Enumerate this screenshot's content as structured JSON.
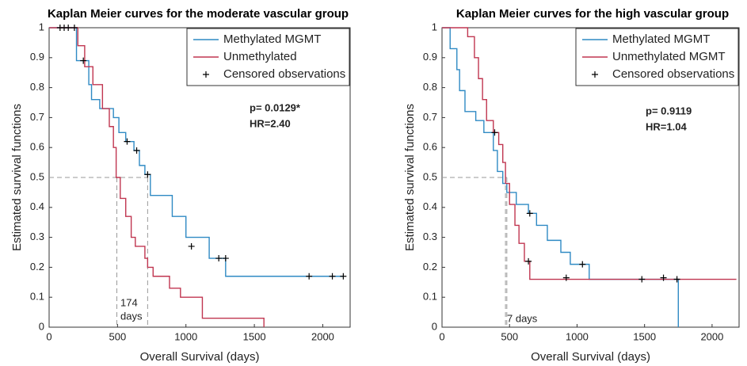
{
  "chart_data": [
    {
      "type": "step",
      "title": "Kaplan Meier curves for the moderate vascular group",
      "x_label": "Overall Survival (days)",
      "y_label": "Estimated survival functions",
      "xlim": [
        0,
        2200
      ],
      "ylim": [
        0,
        1
      ],
      "xticks": [
        0,
        500,
        1000,
        1500,
        2000
      ],
      "yticks": [
        0,
        0.1,
        0.2,
        0.3,
        0.4,
        0.5,
        0.6,
        0.7,
        0.8,
        0.9,
        1
      ],
      "legend": "upper right",
      "series": [
        {
          "name": "Methylated MGMT",
          "color": "#2f8ac4",
          "x": [
            0,
            200,
            290,
            310,
            370,
            470,
            510,
            560,
            620,
            660,
            700,
            740,
            900,
            1000,
            1170,
            1290,
            2150
          ],
          "values": [
            1,
            0.89,
            0.81,
            0.76,
            0.73,
            0.7,
            0.65,
            0.62,
            0.59,
            0.54,
            0.51,
            0.44,
            0.37,
            0.3,
            0.23,
            0.17,
            0.17
          ]
        },
        {
          "name": "Unmethylated",
          "color": "#c03650",
          "x": [
            0,
            210,
            260,
            320,
            390,
            440,
            470,
            490,
            520,
            560,
            600,
            630,
            700,
            720,
            760,
            880,
            960,
            1120,
            1570
          ],
          "values": [
            1,
            0.94,
            0.87,
            0.81,
            0.73,
            0.67,
            0.6,
            0.5,
            0.43,
            0.37,
            0.3,
            0.27,
            0.23,
            0.2,
            0.17,
            0.13,
            0.1,
            0.03,
            0
          ]
        }
      ],
      "censored": {
        "name": "Censored observations",
        "color": "#000000",
        "x": [
          80,
          110,
          140,
          185,
          250,
          570,
          640,
          720,
          1040,
          1240,
          1290,
          1900,
          2070,
          2150
        ],
        "values": [
          1,
          1,
          1,
          1,
          0.89,
          0.62,
          0.59,
          0.51,
          0.27,
          0.23,
          0.23,
          0.17,
          0.17,
          0.17
        ]
      },
      "reference_lines": [
        {
          "x": 495,
          "y": 0.5
        },
        {
          "x": 720,
          "y": 0.5
        }
      ],
      "annotations": [
        "p= 0.0129*",
        "HR=2.40",
        "174",
        "days"
      ]
    },
    {
      "type": "step",
      "title": "Kaplan Meier curves for the high vascular group",
      "x_label": "Overall Survival (days)",
      "y_label": "Estimated survival functions",
      "xlim": [
        0,
        2200
      ],
      "ylim": [
        0,
        1
      ],
      "xticks": [
        0,
        500,
        1000,
        1500,
        2000
      ],
      "yticks": [
        0,
        0.1,
        0.2,
        0.3,
        0.4,
        0.5,
        0.6,
        0.7,
        0.8,
        0.9,
        1
      ],
      "legend": "upper right",
      "series": [
        {
          "name": "Methylated MGMT",
          "color": "#2f8ac4",
          "x": [
            0,
            60,
            110,
            130,
            170,
            250,
            310,
            380,
            410,
            450,
            480,
            550,
            640,
            700,
            780,
            880,
            950,
            1090,
            1750
          ],
          "values": [
            1,
            0.93,
            0.86,
            0.79,
            0.72,
            0.69,
            0.65,
            0.59,
            0.52,
            0.48,
            0.45,
            0.41,
            0.38,
            0.34,
            0.29,
            0.25,
            0.21,
            0.16,
            0
          ]
        },
        {
          "name": "Unmethylated MGMT",
          "color": "#c03650",
          "x": [
            0,
            190,
            240,
            270,
            300,
            330,
            380,
            420,
            450,
            470,
            500,
            540,
            570,
            610,
            650,
            2180
          ],
          "values": [
            1,
            0.97,
            0.9,
            0.83,
            0.76,
            0.69,
            0.65,
            0.61,
            0.55,
            0.48,
            0.41,
            0.34,
            0.28,
            0.22,
            0.16,
            0.16
          ]
        }
      ],
      "censored": {
        "name": "Censored observations",
        "color": "#000000",
        "x": [
          390,
          650,
          640,
          920,
          1040,
          1480,
          1640,
          1740
        ],
        "values": [
          0.65,
          0.38,
          0.22,
          0.165,
          0.21,
          0.16,
          0.165,
          0.16
        ]
      },
      "reference_lines": [
        {
          "x": 470,
          "y": 0.5
        },
        {
          "x": 480,
          "y": 0.5
        }
      ],
      "annotations": [
        "p= 0.9119",
        "HR=1.04",
        "7 days"
      ]
    }
  ]
}
